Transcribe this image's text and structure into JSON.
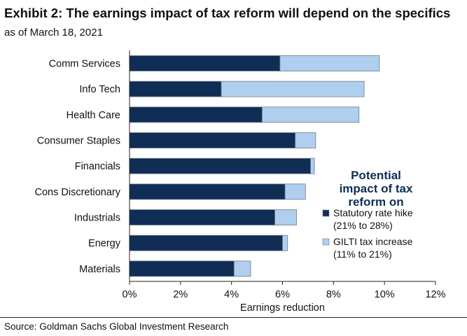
{
  "header": {
    "title": "Exhibit 2: The earnings impact of tax reform will depend on the specifics",
    "subtitle": "as of March 18, 2021"
  },
  "footer": {
    "source": "Source: Goldman Sachs Global Investment Research"
  },
  "chart_data": {
    "type": "bar",
    "orientation": "horizontal",
    "stacked": true,
    "categories": [
      "Comm Services",
      "Info Tech",
      "Health Care",
      "Consumer Staples",
      "Financials",
      "Cons Discretionary",
      "Industrials",
      "Energy",
      "Materials"
    ],
    "series": [
      {
        "name": "Statutory rate hike (21% to 28%)",
        "color": "#0f2d55",
        "values": [
          5.9,
          3.6,
          5.2,
          6.5,
          7.1,
          6.1,
          5.7,
          6.0,
          4.1
        ]
      },
      {
        "name": "GILTI tax increase (11% to 21%)",
        "color": "#b0cfee",
        "values": [
          3.9,
          5.6,
          3.8,
          0.8,
          0.15,
          0.8,
          0.85,
          0.2,
          0.65
        ]
      }
    ],
    "xlabel": "Earnings reduction",
    "xlim": [
      0,
      12
    ],
    "xticks": [
      "0%",
      "2%",
      "4%",
      "6%",
      "8%",
      "10%",
      "12%"
    ],
    "grid": false,
    "legend": {
      "title": "Potential impact of tax reform on",
      "title_lines": [
        "Potential",
        "impact of tax",
        "reform on"
      ],
      "placement": "right",
      "entries": [
        {
          "lines": [
            "Statutory rate hike",
            "(21% to 28%)"
          ]
        },
        {
          "lines": [
            "GILTI tax increase",
            "(11% to 21%)"
          ]
        }
      ]
    }
  }
}
